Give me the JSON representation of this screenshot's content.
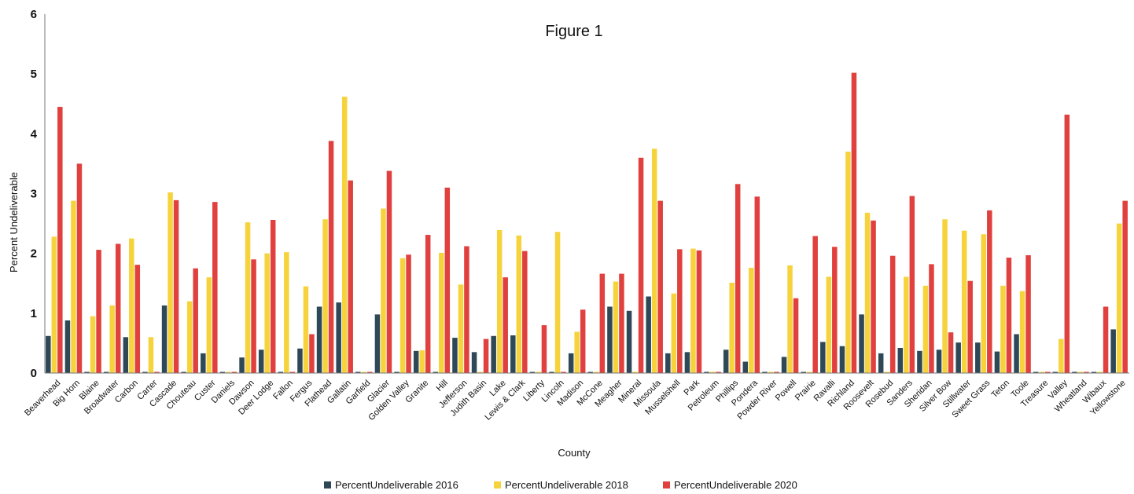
{
  "chart_data": {
    "type": "bar",
    "title": "Figure 1",
    "xlabel": "County",
    "ylabel": "Percent Undeliverable",
    "ylim": [
      0,
      6
    ],
    "yticks": [
      0,
      1,
      2,
      3,
      4,
      5,
      6
    ],
    "grid": false,
    "legend_position": "bottom",
    "categories": [
      "Beaverhead",
      "Big Horn",
      "Blaine",
      "Broadwater",
      "Carbon",
      "Carter",
      "Cascade",
      "Chouteau",
      "Custer",
      "Daniels",
      "Dawson",
      "Deer Lodge",
      "Fallon",
      "Fergus",
      "Flathead",
      "Gallatin",
      "Garfield",
      "Glacier",
      "Golden Valley",
      "Granite",
      "Hill",
      "Jefferson",
      "Judith Basin",
      "Lake",
      "Lewis & Clark",
      "Liberty",
      "Lincoln",
      "Madison",
      "McCone",
      "Meagher",
      "Mineral",
      "Missoula",
      "Musselshell",
      "Park",
      "Petroleum",
      "Phillips",
      "Pondera",
      "Powder River",
      "Powell",
      "Prairie",
      "Ravalli",
      "Richland",
      "Roosevelt",
      "Rosebud",
      "Sanders",
      "Sheridan",
      "Silver Bow",
      "Stillwater",
      "Sweet Grass",
      "Teton",
      "Toole",
      "Treasure",
      "Valley",
      "Wheatland",
      "Wibaux",
      "Yellowstone"
    ],
    "series": [
      {
        "name": "PercentUndeliverable 2016",
        "color": "#2f4858",
        "values": [
          0.62,
          0.88,
          0.01,
          0.01,
          0.6,
          0.01,
          1.13,
          0,
          0.33,
          0.01,
          0.26,
          0.39,
          0.02,
          0.41,
          1.11,
          1.18,
          0.02,
          0.98,
          0.02,
          0.37,
          0.01,
          0.59,
          0.35,
          0.62,
          0.63,
          0.01,
          0.02,
          0.33,
          0.01,
          1.11,
          1.04,
          1.28,
          0.33,
          0.35,
          0.01,
          0.39,
          0.19,
          0.02,
          0.27,
          0.01,
          0.52,
          0.45,
          0.98,
          0.33,
          0.42,
          0.37,
          0.39,
          0.51,
          0.51,
          0.36,
          0.65,
          0.01,
          0.01,
          0.02,
          0.01,
          0.73
        ]
      },
      {
        "name": "PercentUndeliverable 2018",
        "color": "#f6d33c",
        "values": [
          2.28,
          2.88,
          0.95,
          1.13,
          2.25,
          0.6,
          3.02,
          1.2,
          1.6,
          0.01,
          2.52,
          2.0,
          2.02,
          1.45,
          2.57,
          4.62,
          0.01,
          2.75,
          1.92,
          0.38,
          2.01,
          1.48,
          0,
          2.39,
          2.3,
          0,
          2.36,
          0.69,
          0,
          1.53,
          0,
          3.75,
          1.33,
          2.08,
          0.02,
          1.51,
          1.76,
          0.02,
          1.8,
          0,
          1.61,
          3.7,
          2.68,
          0,
          1.61,
          1.46,
          2.57,
          2.38,
          2.32,
          1.46,
          1.37,
          0.02,
          0.57,
          0.02,
          0.02,
          2.5
        ]
      },
      {
        "name": "PercentUndeliverable 2020",
        "color": "#e0413e",
        "values": [
          4.45,
          3.5,
          2.06,
          2.16,
          1.81,
          0,
          2.89,
          1.75,
          2.86,
          0,
          1.9,
          2.56,
          0,
          0.65,
          3.88,
          3.22,
          0,
          3.38,
          1.98,
          2.31,
          3.1,
          2.12,
          0.57,
          1.6,
          2.04,
          0.8,
          0,
          1.06,
          1.66,
          1.66,
          3.6,
          2.88,
          2.07,
          2.05,
          0,
          3.16,
          2.95,
          0,
          1.25,
          2.29,
          2.11,
          5.02,
          2.55,
          1.96,
          2.96,
          1.82,
          0.68,
          1.54,
          2.72,
          1.93,
          1.97,
          0.02,
          4.32,
          0,
          1.11,
          2.88
        ]
      }
    ]
  }
}
